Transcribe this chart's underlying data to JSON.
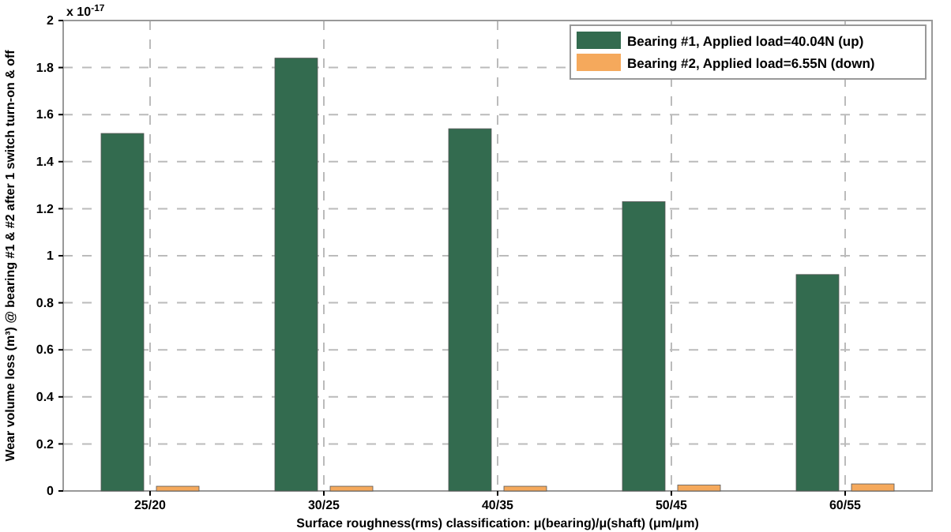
{
  "chart_data": {
    "type": "bar",
    "xlabel": "Surface roughness(rms) classification: μ(bearing)/μ(shaft) (μm/μm)",
    "ylabel": "Wear volume loss (m³) @ bearing #1 & #2 after 1 switch turn-on & off",
    "categories": [
      "25/20",
      "30/25",
      "40/35",
      "50/45",
      "60/55"
    ],
    "series": [
      {
        "name": "Bearing #1, Applied load=40.04N (up)",
        "color": "#336b4f",
        "values": [
          1.52,
          1.84,
          1.54,
          1.23,
          0.92
        ]
      },
      {
        "name": "Bearing #2, Applied load=6.55N (down)",
        "color": "#f5a95c",
        "values": [
          0.02,
          0.02,
          0.02,
          0.025,
          0.03
        ]
      }
    ],
    "ylim": [
      0,
      2
    ],
    "yticks": [
      0,
      0.2,
      0.4,
      0.6,
      0.8,
      1,
      1.2,
      1.4,
      1.6,
      1.8,
      2
    ],
    "annotations": [
      "x 10$^{-17}$"
    ],
    "grid": true,
    "legend": "top right"
  }
}
